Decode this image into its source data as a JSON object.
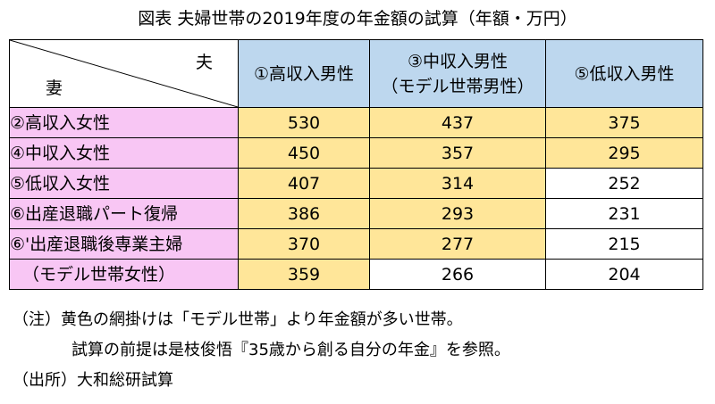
{
  "title": "図表 夫婦世帯の2019年度の年金額の試算（年額・万円）",
  "table": {
    "corner_husband": "夫",
    "corner_wife": "妻",
    "columns": [
      {
        "label": "①高収入男性",
        "sub": ""
      },
      {
        "label": "③中収入男性",
        "sub": "（モデル世帯男性）"
      },
      {
        "label": "⑤低収入男性",
        "sub": ""
      }
    ],
    "rows": [
      {
        "label": "②高収入女性",
        "values": [
          "530",
          "437",
          "375"
        ],
        "highlight": [
          true,
          true,
          true
        ]
      },
      {
        "label": "④中収入女性",
        "values": [
          "450",
          "357",
          "295"
        ],
        "highlight": [
          true,
          true,
          true
        ]
      },
      {
        "label": "⑤低収入女性",
        "values": [
          "407",
          "314",
          "252"
        ],
        "highlight": [
          true,
          true,
          false
        ]
      },
      {
        "label": "⑥出産退職パート復帰",
        "values": [
          "386",
          "293",
          "231"
        ],
        "highlight": [
          true,
          true,
          false
        ]
      },
      {
        "label": "⑥'出産退職後専業主婦",
        "values": [
          "370",
          "277",
          "215"
        ],
        "highlight": [
          true,
          true,
          false
        ]
      },
      {
        "label": "（モデル世帯女性）",
        "values": [
          "359",
          "266",
          "204"
        ],
        "highlight": [
          true,
          false,
          false
        ]
      }
    ]
  },
  "notes": {
    "line1": "（注）黄色の網掛けは「モデル世帯」より年金額が多い世帯。",
    "line2": "試算の前提は是枝俊悟『35歳から創る自分の年金』を参照。",
    "line3": "（出所）大和総研試算"
  },
  "colors": {
    "header_blue": "#bdd7ee",
    "row_pink": "#f8c6f4",
    "highlight_yellow": "#ffe699"
  }
}
